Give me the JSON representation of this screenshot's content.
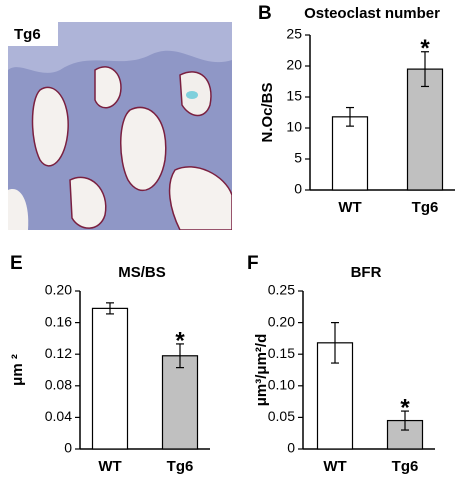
{
  "image": {
    "label": "Tg6"
  },
  "chart_data": [
    {
      "type": "bar",
      "panel_label": "B",
      "title": "Osteoclast number",
      "y_label": "N.Oc/BS",
      "categories": [
        "WT",
        "Tg6"
      ],
      "values": [
        11.8,
        19.5
      ],
      "errors": [
        1.5,
        2.8
      ],
      "colors": [
        "#ffffff",
        "#c0c0c0"
      ],
      "annotation": "*",
      "ylim": [
        0,
        25
      ],
      "yticks": [
        0,
        5,
        10,
        15,
        20,
        25
      ]
    },
    {
      "type": "bar",
      "panel_label": "E",
      "title": "MS/BS",
      "y_label": "μm ²",
      "categories": [
        "WT",
        "Tg6"
      ],
      "values": [
        0.178,
        0.118
      ],
      "errors": [
        0.007,
        0.015
      ],
      "colors": [
        "#ffffff",
        "#c0c0c0"
      ],
      "annotation": "*",
      "ylim": [
        0,
        0.2
      ],
      "yticks": [
        0,
        0.04,
        0.08,
        0.12,
        0.16,
        {
          "value": 0.2,
          "label": "0.20"
        }
      ]
    },
    {
      "type": "bar",
      "panel_label": "F",
      "title": "BFR",
      "y_label": "μm³/μm²/d",
      "categories": [
        "WT",
        "Tg6"
      ],
      "values": [
        0.168,
        0.045
      ],
      "errors": [
        0.032,
        0.015
      ],
      "colors": [
        "#ffffff",
        "#c0c0c0"
      ],
      "annotation": "*",
      "ylim": [
        0,
        0.25
      ],
      "yticks": [
        0,
        0.05,
        {
          "value": 0.1,
          "label": "0.10"
        },
        0.15,
        {
          "value": 0.2,
          "label": "0.20"
        },
        0.25
      ]
    }
  ]
}
